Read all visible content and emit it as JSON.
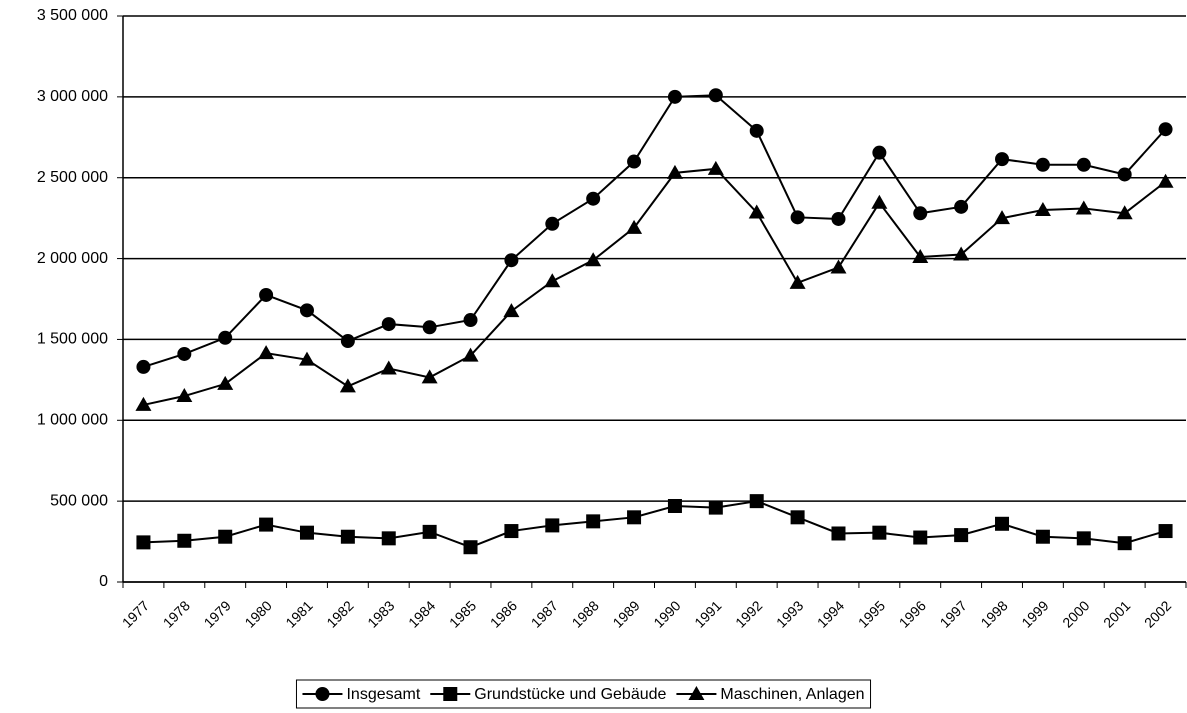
{
  "chart_data": {
    "type": "line",
    "categories": [
      "1977",
      "1978",
      "1979",
      "1980",
      "1981",
      "1982",
      "1983",
      "1984",
      "1985",
      "1986",
      "1987",
      "1988",
      "1989",
      "1990",
      "1991",
      "1992",
      "1993",
      "1994",
      "1995",
      "1996",
      "1997",
      "1998",
      "1999",
      "2000",
      "2001",
      "2002"
    ],
    "series": [
      {
        "name": "Insgesamt",
        "color": "#000000",
        "marker": "circle",
        "values": [
          1330000,
          1410000,
          1510000,
          1775000,
          1680000,
          1490000,
          1595000,
          1575000,
          1620000,
          1990000,
          2215000,
          2370000,
          2600000,
          3000000,
          3010000,
          2790000,
          2255000,
          2245000,
          2655000,
          2280000,
          2320000,
          2615000,
          2580000,
          2580000,
          2520000,
          2800000
        ]
      },
      {
        "name": "Grundstücke und Gebäude",
        "color": "#000000",
        "marker": "square",
        "values": [
          245000,
          255000,
          280000,
          355000,
          305000,
          280000,
          270000,
          310000,
          215000,
          315000,
          350000,
          375000,
          400000,
          470000,
          460000,
          500000,
          400000,
          300000,
          305000,
          275000,
          290000,
          360000,
          280000,
          270000,
          240000,
          315000
        ]
      },
      {
        "name": "Maschinen, Anlagen",
        "color": "#000000",
        "marker": "triangle",
        "values": [
          1095000,
          1150000,
          1225000,
          1415000,
          1375000,
          1210000,
          1320000,
          1265000,
          1400000,
          1675000,
          1860000,
          1990000,
          2190000,
          2530000,
          2555000,
          2285000,
          1850000,
          1945000,
          2345000,
          2010000,
          2025000,
          2250000,
          2300000,
          2310000,
          2280000,
          2475000
        ]
      }
    ],
    "ylim": [
      0,
      3500000
    ],
    "yticks": [
      0,
      {
        "value": 500000,
        "label": "500 000"
      },
      {
        "value": 1000000,
        "label": "1 000 000"
      },
      {
        "value": 1500000,
        "label": "1 500 000"
      },
      {
        "value": 2000000,
        "label": "2 000 000"
      },
      {
        "value": 2500000,
        "label": "2 500 000"
      },
      {
        "value": 3000000,
        "label": "3 000 000"
      },
      {
        "value": 3500000,
        "label": "3 500 000"
      }
    ],
    "grid": true,
    "legend": "bottom"
  }
}
